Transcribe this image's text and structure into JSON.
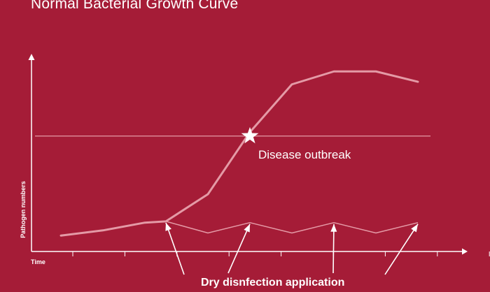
{
  "slide": {
    "background": "#a51c37"
  },
  "chart_data": {
    "type": "line",
    "title": "Normal Bacterial Growth Curve",
    "xlabel": "Time",
    "ylabel": "Pathogen numbers",
    "grid": false,
    "legend": "none",
    "x_tick_count": 10,
    "series": [
      {
        "points": [
          [
            0,
            8
          ],
          [
            1,
            12
          ],
          [
            2,
            18
          ],
          [
            2.5,
            19
          ],
          [
            3.5,
            40
          ],
          [
            4.5,
            88
          ],
          [
            5.5,
            125
          ],
          [
            6.5,
            135
          ],
          [
            7.5,
            135
          ],
          [
            8.5,
            127
          ]
        ],
        "color": "#e49aa6",
        "width": 3
      },
      {
        "points": [
          [
            2.5,
            19
          ],
          [
            3.5,
            10
          ],
          [
            4.5,
            18
          ],
          [
            5.5,
            10
          ],
          [
            6.5,
            18
          ],
          [
            7.5,
            10
          ],
          [
            8.5,
            18
          ]
        ],
        "color": "#e49aa6",
        "width": 1.5
      }
    ],
    "threshold": {
      "y": 85,
      "x_start": 0,
      "x_end": 8.8
    },
    "annotations": [
      {
        "text": "Disease outbreak",
        "marker": "star",
        "x": 4.5,
        "y": 85
      },
      {
        "text": "Dry disnfection application",
        "arrows_to_x": [
          2.5,
          4.5,
          6.5,
          8.5
        ]
      }
    ]
  }
}
